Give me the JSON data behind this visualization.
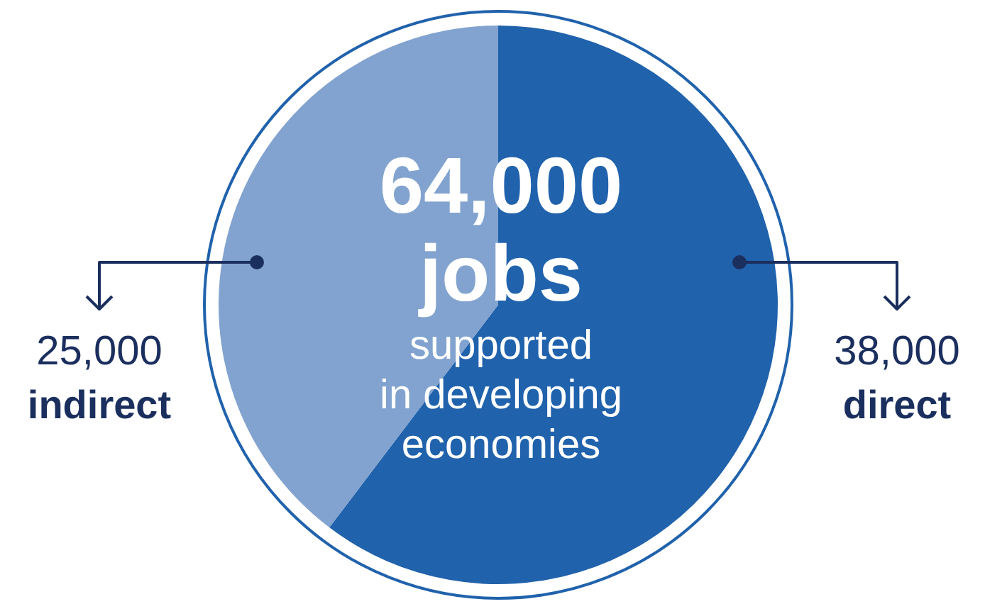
{
  "chart_data": {
    "type": "pie",
    "categories": [
      "direct",
      "indirect"
    ],
    "values": [
      38000,
      25000
    ],
    "colors": [
      "#2062ac",
      "#82a3cf"
    ],
    "value_labels": [
      "38,000",
      "25,000"
    ],
    "annotations": [
      "64,000",
      "jobs",
      "supported",
      "in developing",
      "economies"
    ]
  }
}
